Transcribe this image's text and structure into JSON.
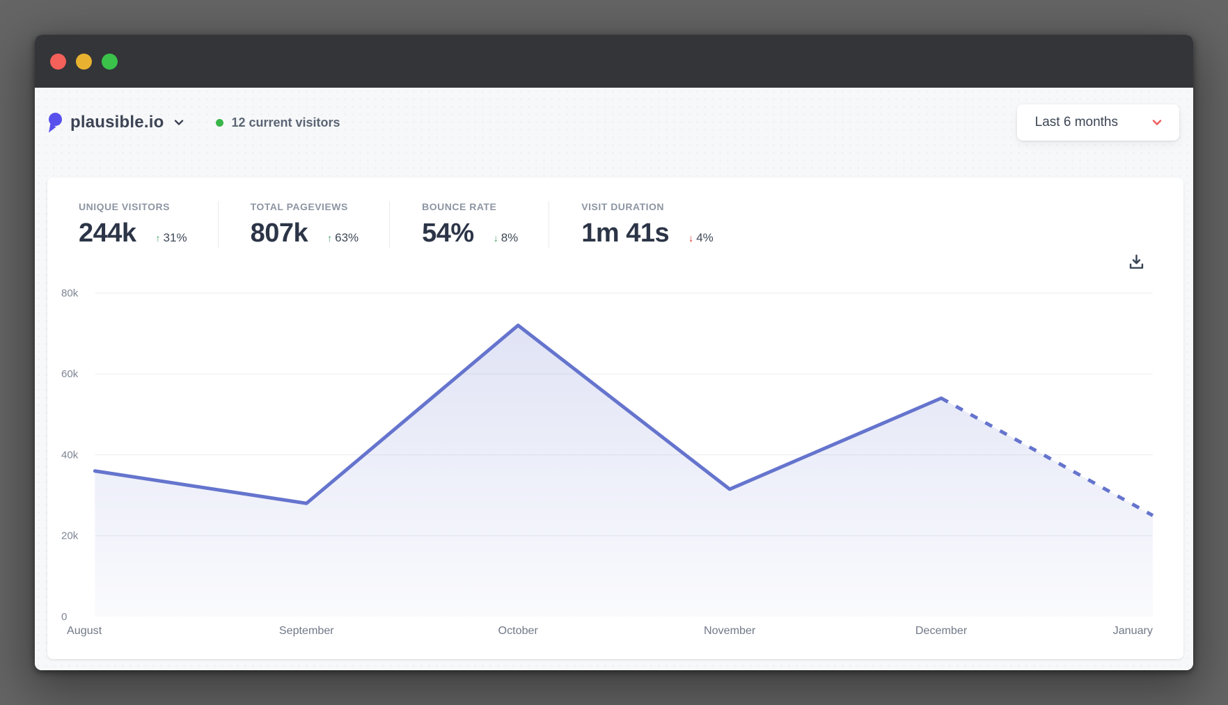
{
  "window": {
    "traffic_lights": [
      {
        "name": "close"
      },
      {
        "name": "minimize"
      },
      {
        "name": "zoom"
      }
    ]
  },
  "header": {
    "site_name": "plausible.io",
    "visitors_text": "12 current visitors",
    "period_label": "Last 6 months"
  },
  "stats": [
    {
      "label": "UNIQUE VISITORS",
      "value": "244k",
      "change": "31%",
      "direction": "up",
      "sentiment": "good"
    },
    {
      "label": "TOTAL PAGEVIEWS",
      "value": "807k",
      "change": "63%",
      "direction": "up",
      "sentiment": "good"
    },
    {
      "label": "BOUNCE RATE",
      "value": "54%",
      "change": "8%",
      "direction": "down",
      "sentiment": "good"
    },
    {
      "label": "VISIT DURATION",
      "value": "1m 41s",
      "change": "4%",
      "direction": "down",
      "sentiment": "bad"
    }
  ],
  "chart_data": {
    "type": "area",
    "title": "",
    "xlabel": "",
    "ylabel": "",
    "categories": [
      "August",
      "September",
      "October",
      "November",
      "December",
      "January"
    ],
    "series": [
      {
        "name": "Unique visitors",
        "values": [
          36000,
          28000,
          72000,
          31500,
          54000,
          25000
        ]
      }
    ],
    "dashed_from_index": 4,
    "ylim": [
      0,
      80000
    ],
    "y_ticks": [
      0,
      20000,
      40000,
      60000,
      80000
    ],
    "y_tick_labels": [
      "0",
      "20k",
      "40k",
      "60k",
      "80k"
    ],
    "grid": true,
    "legend": false,
    "line_color": "#6574cd",
    "fill_top": "rgba(101,116,205,0.20)",
    "fill_bottom": "rgba(101,116,205,0.03)",
    "grid_color": "#ebedf0",
    "tick_color": "#7d8593"
  },
  "colors": {
    "positive_green": "#3f9e63",
    "negative_red": "#e02424",
    "dropdown_chevron_red": "#ee5f5f",
    "live_dot_green": "#39b54a",
    "logo_purple": "#5850ec",
    "traffic_red": "#f4605a",
    "traffic_yellow": "#e8b230",
    "traffic_green": "#3ac24a"
  }
}
